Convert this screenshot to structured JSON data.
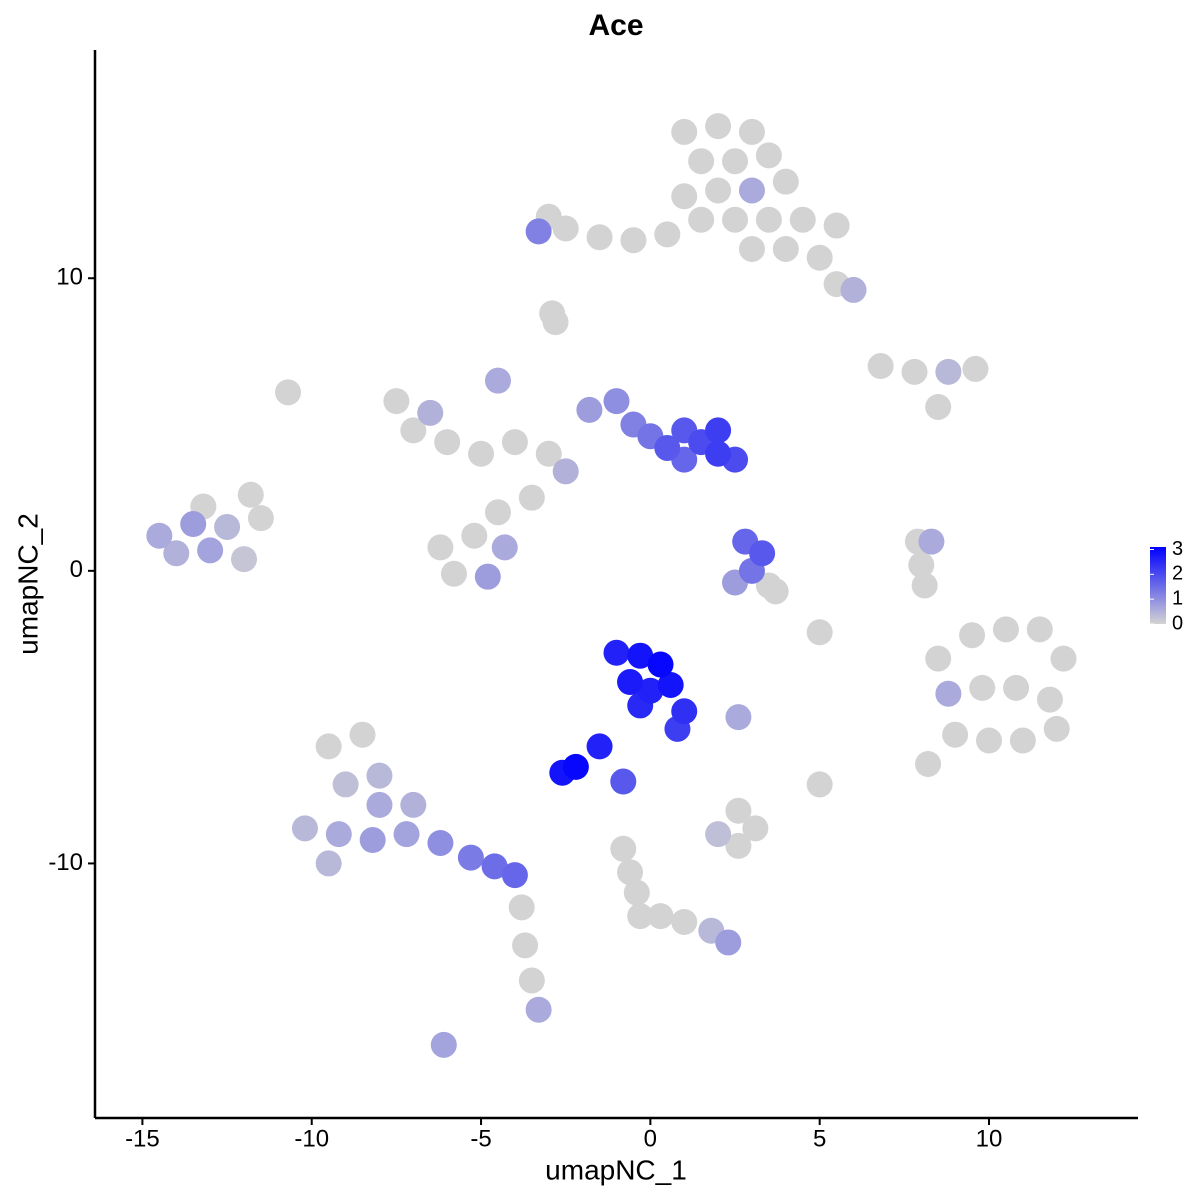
{
  "chart_data": {
    "type": "scatter",
    "title": "Ace",
    "x_label": "umapNC_1",
    "y_label": "umapNC_2",
    "xlim": [
      -16.4,
      14.4
    ],
    "ylim": [
      -18.7,
      17.8
    ],
    "xticks": [
      -15,
      -10,
      -5,
      0,
      5,
      10
    ],
    "yticks": [
      -10,
      0,
      10
    ],
    "color_low": "#d3d3d3",
    "color_high": "#0000ff",
    "colorlim": [
      0,
      3.1
    ],
    "colorticks": [
      0,
      1,
      2,
      3
    ],
    "x": [
      1,
      2,
      3,
      1.5,
      2.5,
      3.5,
      2,
      3,
      4,
      1.5,
      2.5,
      3.5,
      4.5,
      5.5,
      3,
      4,
      5,
      5.5,
      6,
      0.5,
      -0.5,
      -1.5,
      -2.5,
      -3.3,
      -3,
      1,
      -2.9,
      -2.8,
      6.8,
      7.8,
      8.8,
      9.6,
      8.5,
      -7.5,
      -6.5,
      -7,
      -6,
      -5,
      -4,
      -3,
      -4.5,
      -6.2,
      -5.2,
      -4.3,
      -5.8,
      -4.8,
      -4.5,
      -3.5,
      -1.8,
      -1,
      -0.5,
      0,
      0.5,
      1,
      1.5,
      2,
      2.5,
      2,
      1,
      -2.5,
      2.8,
      3.3,
      3.0,
      3.5,
      2.5,
      3.7,
      -14.5,
      -13.5,
      -12.5,
      -11.5,
      -14,
      -13,
      -12,
      -13.2,
      -11.8,
      -1,
      -0.3,
      0.3,
      -0.6,
      0,
      0.6,
      1.0,
      -0.3,
      0.8,
      -1.5,
      -2.2,
      -2.6,
      8.5,
      9.5,
      10.5,
      11.5,
      12.2,
      8.8,
      9.8,
      10.8,
      11.8,
      9,
      10,
      11,
      12,
      8.2,
      -9.5,
      -8.5,
      -8,
      -9,
      -8,
      -7,
      -10.2,
      -9.2,
      -8.2,
      -7.2,
      -6.2,
      -5.3,
      -4.6,
      -4,
      -9.5,
      -3.8,
      -3.7,
      -3.5,
      -3.3,
      -6.1,
      -0.8,
      -0.6,
      -0.4,
      -0.3,
      0.3,
      1,
      1.8,
      2.3,
      2,
      2.6,
      3.1,
      2.6,
      7.9,
      8.0,
      8.1,
      8.3,
      -10.7,
      5,
      5,
      -0.8,
      2.6
    ],
    "y": [
      15,
      15.2,
      15,
      14,
      14,
      14.2,
      13,
      13,
      13.3,
      12,
      12,
      12,
      12,
      11.8,
      11,
      11,
      10.7,
      9.8,
      9.6,
      11.5,
      11.3,
      11.4,
      11.7,
      11.6,
      12.1,
      12.8,
      8.8,
      8.5,
      7.0,
      6.8,
      6.8,
      6.9,
      5.6,
      5.8,
      5.4,
      4.8,
      4.4,
      4.0,
      4.4,
      4.0,
      6.5,
      0.8,
      1.2,
      0.8,
      -0.1,
      -0.2,
      2,
      2.5,
      5.5,
      5.8,
      5,
      4.6,
      4.2,
      4.8,
      4.4,
      4.0,
      3.8,
      4.8,
      3.8,
      3.4,
      1.0,
      0.6,
      0.0,
      -0.5,
      -0.4,
      -0.7,
      1.2,
      1.6,
      1.5,
      1.8,
      0.6,
      0.7,
      0.4,
      2.2,
      2.6,
      -2.8,
      -2.9,
      -3.2,
      -3.8,
      -4.1,
      -3.9,
      -4.8,
      -4.6,
      -5.4,
      -6.0,
      -6.7,
      -6.9,
      -3,
      -2.2,
      -2,
      -2,
      -3,
      -4.2,
      -4,
      -4,
      -4.4,
      -5.6,
      -5.8,
      -5.8,
      -5.4,
      -6.6,
      -6,
      -5.6,
      -7,
      -7.3,
      -8,
      -8,
      -8.8,
      -9,
      -9.2,
      -9,
      -9.3,
      -9.8,
      -10.1,
      -10.4,
      -10,
      -11.5,
      -12.8,
      -14,
      -15,
      -16.2,
      -9.5,
      -10.3,
      -11,
      -11.8,
      -11.8,
      -12,
      -12.3,
      -12.7,
      -9.0,
      -9.4,
      -8.8,
      -8.2,
      1.0,
      0.2,
      -0.5,
      1.0,
      6.1,
      -2.1,
      -7.3,
      -7.2,
      -5.0
    ],
    "values": [
      0,
      0,
      0,
      0,
      0,
      0,
      0,
      0.6,
      0,
      0,
      0,
      0,
      0,
      0,
      0,
      0,
      0,
      0,
      0.5,
      0,
      0,
      0,
      0,
      1.2,
      0,
      0,
      0,
      0,
      0,
      0,
      0.4,
      0,
      0,
      0,
      0.5,
      0,
      0,
      0,
      0,
      0,
      0.6,
      0,
      0,
      0.6,
      0,
      0.8,
      0,
      0,
      0.8,
      1.0,
      1.2,
      1.4,
      1.8,
      1.8,
      2.0,
      2.2,
      2.0,
      2.2,
      1.6,
      0.5,
      1.6,
      1.8,
      1.4,
      0,
      0.8,
      0,
      0.6,
      0.8,
      0.4,
      0,
      0.5,
      0.7,
      0.2,
      0,
      0,
      2.6,
      2.8,
      3.0,
      2.7,
      2.6,
      2.8,
      2.4,
      2.5,
      2.2,
      2.6,
      3.0,
      2.8,
      0,
      0,
      0,
      0,
      0,
      0.6,
      0,
      0,
      0,
      0,
      0,
      0,
      0,
      0,
      0,
      0,
      0.4,
      0.3,
      0.6,
      0.5,
      0.4,
      0.6,
      0.8,
      0.7,
      1.0,
      1.3,
      1.5,
      1.6,
      0.4,
      0,
      0,
      0,
      0.6,
      0.7,
      0,
      0,
      0,
      0,
      0,
      0,
      0.4,
      0.8,
      0.3,
      0,
      0,
      0,
      0,
      0,
      0,
      0.6,
      0,
      0,
      0,
      1.8,
      0.6
    ]
  }
}
